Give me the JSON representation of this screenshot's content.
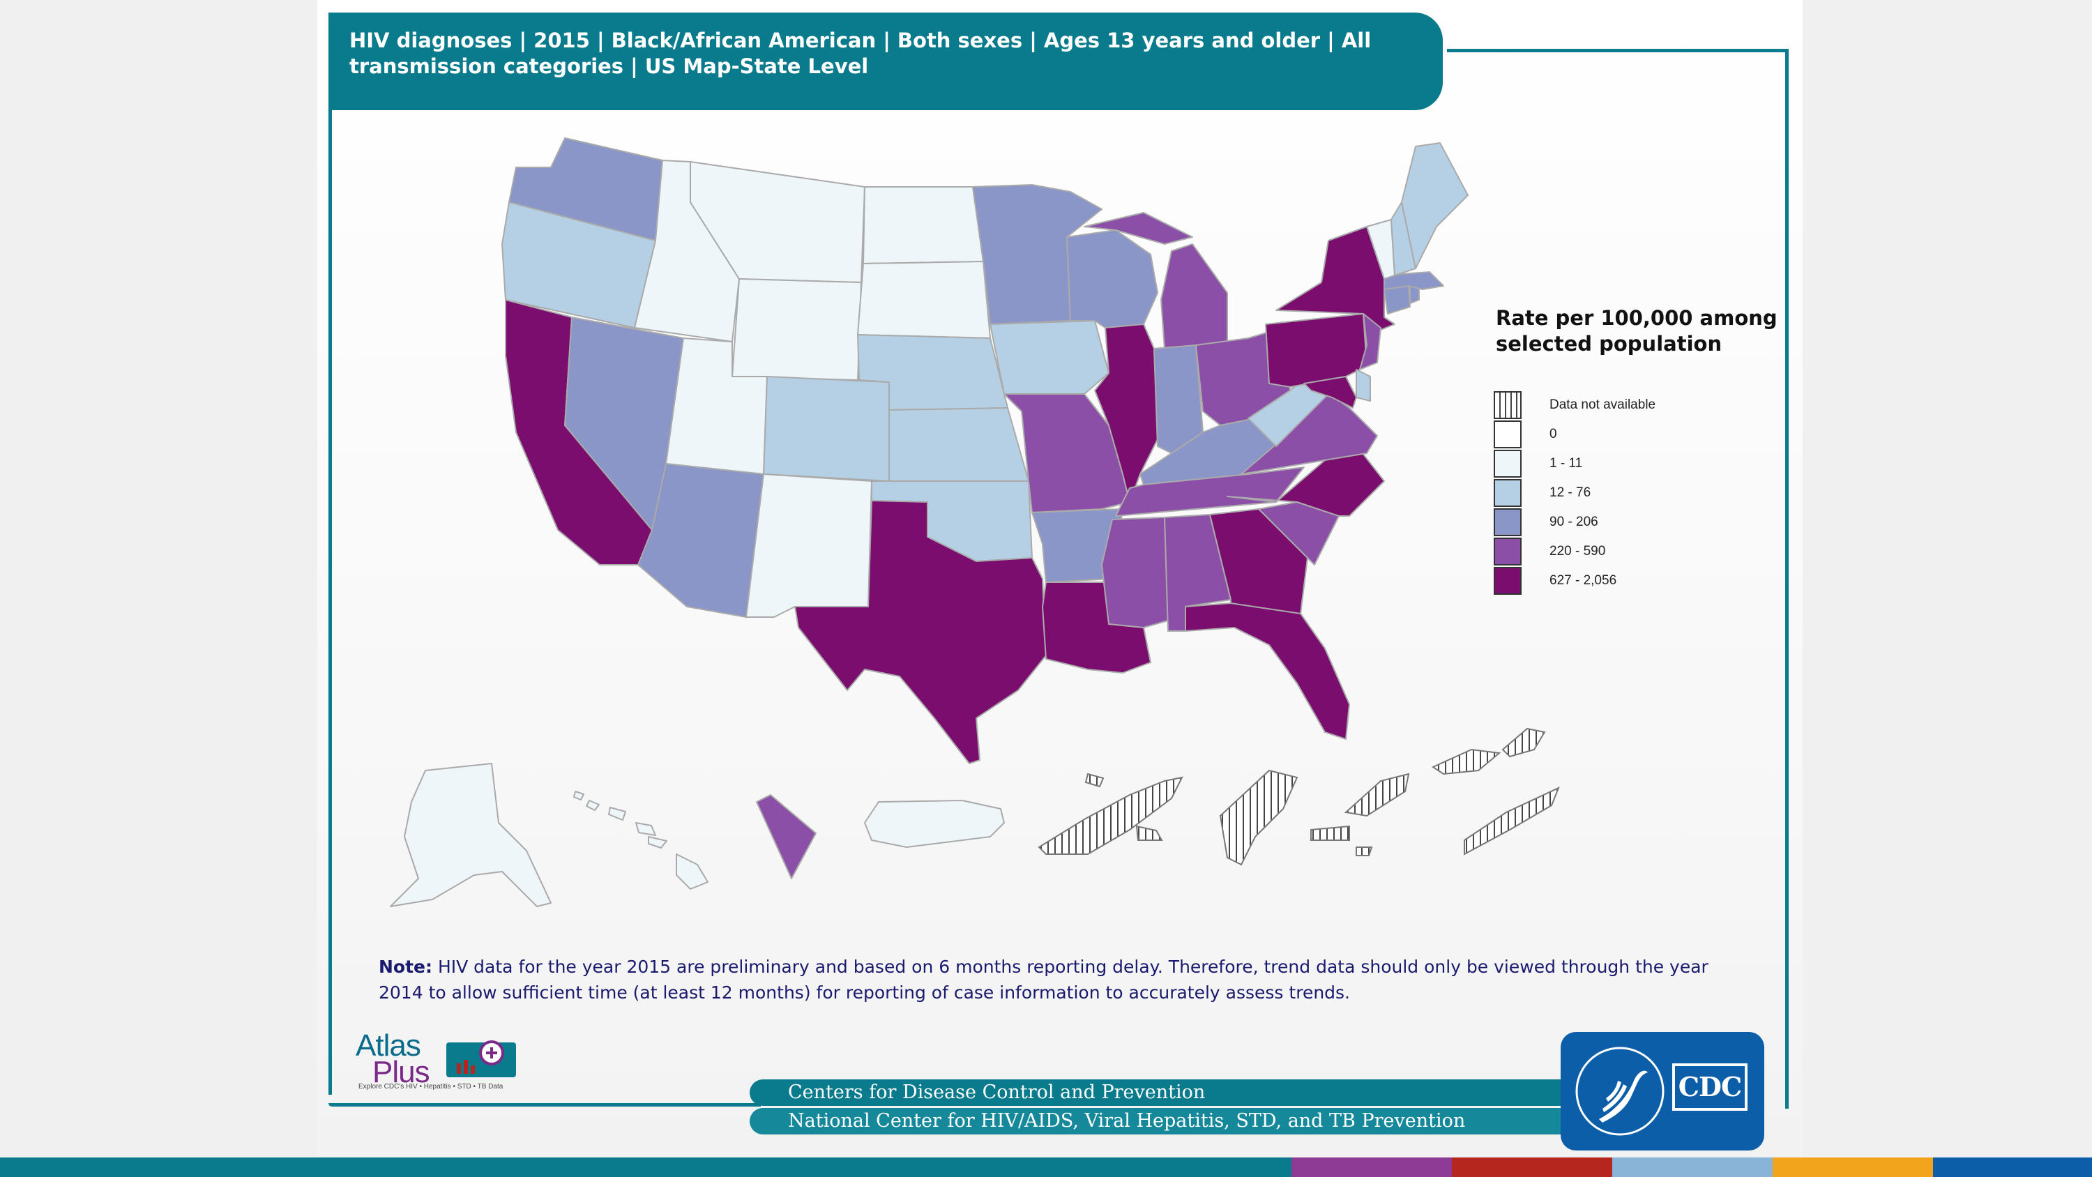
{
  "title": "HIV diagnoses | 2015 | Black/African American | Both sexes | Ages 13 years and older | All transmission categories | US Map-State Level",
  "legend": {
    "title": "Rate per 100,000 among selected population",
    "items": [
      {
        "label": "Data not available",
        "color": "hatch"
      },
      {
        "label": "0",
        "color": "#ffffff"
      },
      {
        "label": "1 - 11",
        "color": "#eef6fa"
      },
      {
        "label": "12 - 76",
        "color": "#b5d0e4"
      },
      {
        "label": "90 - 206",
        "color": "#8a96c8"
      },
      {
        "label": "220 - 590",
        "color": "#8c4fa8"
      },
      {
        "label": "627 - 2,056",
        "color": "#7a0d6e"
      }
    ]
  },
  "map_data": {
    "WA": "90 - 206",
    "OR": "12 - 76",
    "CA": "627 - 2,056",
    "ID": "1 - 11",
    "NV": "90 - 206",
    "MT": "1 - 11",
    "WY": "1 - 11",
    "UT": "1 - 11",
    "AZ": "90 - 206",
    "CO": "12 - 76",
    "NM": "1 - 11",
    "ND": "1 - 11",
    "SD": "1 - 11",
    "NE": "12 - 76",
    "KS": "12 - 76",
    "OK": "12 - 76",
    "TX": "627 - 2,056",
    "MN": "90 - 206",
    "IA": "12 - 76",
    "MO": "220 - 590",
    "AR": "90 - 206",
    "LA": "627 - 2,056",
    "WI": "90 - 206",
    "IL": "627 - 2,056",
    "MI": "220 - 590",
    "IN": "90 - 206",
    "OH": "220 - 590",
    "KY": "90 - 206",
    "TN": "220 - 590",
    "MS": "220 - 590",
    "AL": "220 - 590",
    "GA": "627 - 2,056",
    "FL": "627 - 2,056",
    "SC": "220 - 590",
    "NC": "627 - 2,056",
    "VA": "220 - 590",
    "WV": "12 - 76",
    "PA": "627 - 2,056",
    "NY": "627 - 2,056",
    "NJ": "220 - 590",
    "DE": "12 - 76",
    "MD": "627 - 2,056",
    "CT": "90 - 206",
    "RI": "90 - 206",
    "MA": "90 - 206",
    "VT": "1 - 11",
    "NH": "12 - 76",
    "ME": "12 - 76",
    "AK": "1 - 11",
    "HI": "1 - 11",
    "DC": "220 - 590",
    "PR": "1 - 11",
    "American Samoa": "Data not available",
    "Guam": "Data not available",
    "Northern Mariana Islands": "Data not available",
    "Palau": "Data not available",
    "Marshall Islands": "Data not available",
    "Micronesia": "Data not available"
  },
  "note": {
    "label": "Note:",
    "text": " HIV data for the year 2015 are preliminary and based on 6 months reporting delay. Therefore, trend data should only be viewed through the year 2014 to allow sufficient time (at least 12 months) for reporting of case information to accurately assess trends."
  },
  "atlas_logo": {
    "word1": "Atlas",
    "word2": "Plus",
    "tagline": "Explore CDC's HIV • Hepatitis • STD • TB Data"
  },
  "footer": {
    "line1": "Centers for Disease Control and Prevention",
    "line2": "National Center for HIV/AIDS, Viral Hepatitis, STD, and TB Prevention"
  },
  "cdc_logo_text": "CDC",
  "colors": {
    "teal": "#0a7b8c",
    "stripe": [
      "#0a7b8c",
      "#8e3b96",
      "#b5261e",
      "#8ab3d8",
      "#f2a51c",
      "#0d5ea8"
    ]
  }
}
